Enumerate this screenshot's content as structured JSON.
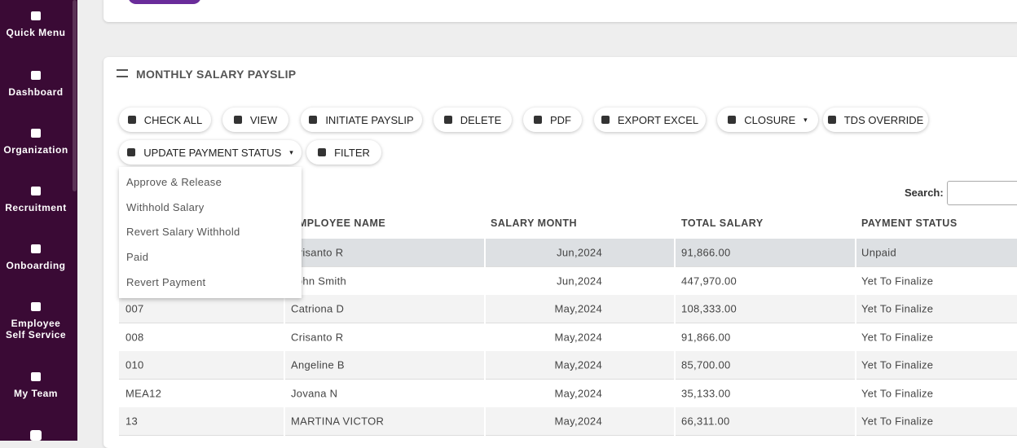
{
  "sidebar": {
    "items": [
      "Quick Menu",
      "Dashboard",
      "Organization",
      "Recruitment",
      "Onboarding",
      "Employee Self Service",
      "My Team"
    ]
  },
  "card": {
    "title": "MONTHLY SALARY PAYSLIP",
    "buttons": [
      "CHECK ALL",
      "VIEW",
      "INITIATE PAYSLIP",
      "DELETE",
      "PDF",
      "EXPORT EXCEL",
      "CLOSURE",
      "TDS OVERRIDE",
      "UPDATE PAYMENT STATUS",
      "FILTER"
    ],
    "dropdown": [
      "Approve & Release",
      "Withhold Salary",
      "Revert Salary Withhold",
      "Paid",
      "Revert Payment"
    ],
    "search_label": "Search:"
  },
  "table": {
    "headers": [
      "EMPLOYEE NAME",
      "SALARY MONTH",
      "TOTAL SALARY",
      "PAYMENT STATUS"
    ],
    "rows": [
      [
        null,
        "Crisanto R",
        "Jun,2024",
        "91,866.00",
        "Unpaid"
      ],
      [
        null,
        "John Smith",
        "Jun,2024",
        "447,970.00",
        "Yet To Finalize"
      ],
      [
        "007",
        "Catriona D",
        "May,2024",
        "108,333.00",
        "Yet To Finalize"
      ],
      [
        "008",
        "Crisanto R",
        "May,2024",
        "91,866.00",
        "Yet To Finalize"
      ],
      [
        "010",
        "Angeline B",
        "May,2024",
        "85,700.00",
        "Yet To Finalize"
      ],
      [
        "MEA12",
        "Jovana N",
        "May,2024",
        "35,133.00",
        "Yet To Finalize"
      ],
      [
        "13",
        "MARTINA VICTOR",
        "May,2024",
        "66,311.00",
        "Yet To Finalize"
      ]
    ]
  }
}
